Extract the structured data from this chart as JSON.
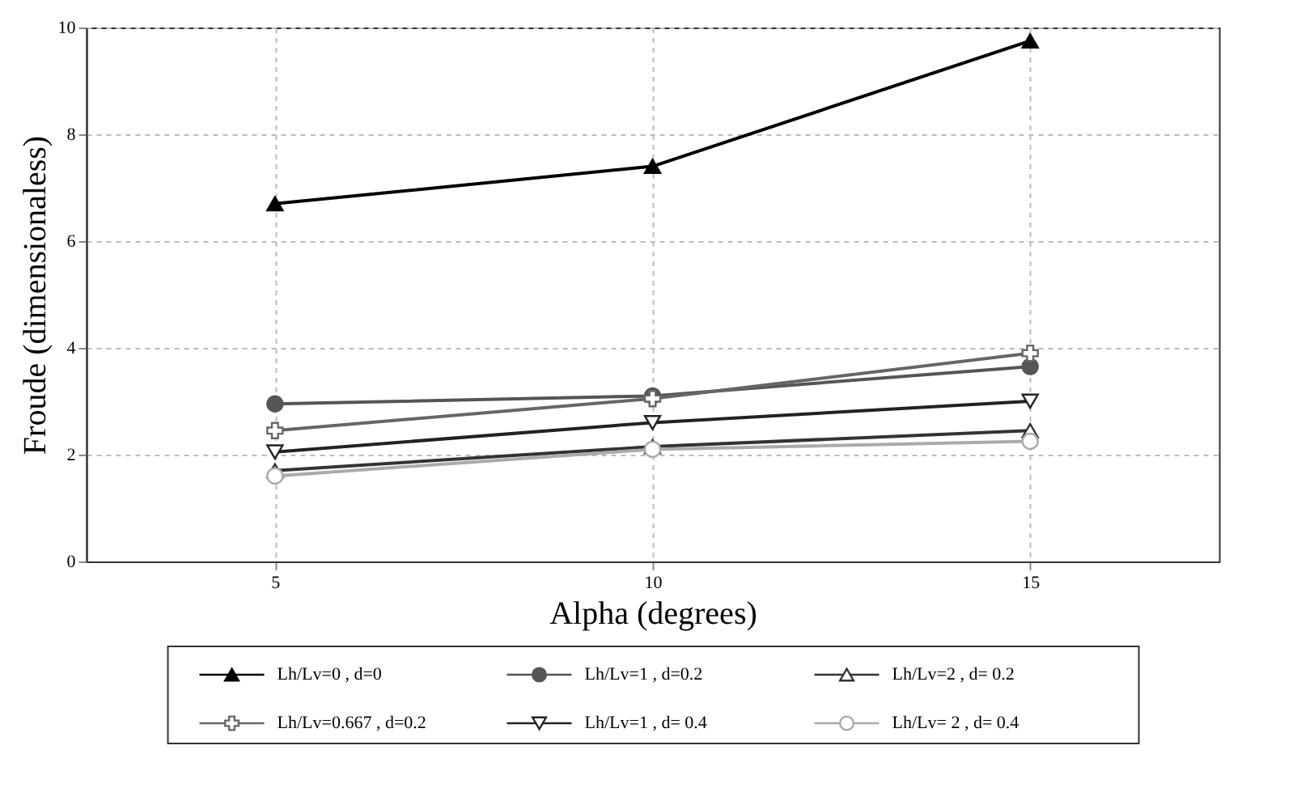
{
  "chart_data": {
    "type": "line",
    "xlabel": "Alpha (degrees)",
    "ylabel": "Froude (dimensionaless)",
    "x": [
      5,
      10,
      15
    ],
    "xlim": [
      2.5,
      17.5
    ],
    "xticks": [
      5,
      10,
      15
    ],
    "ylim": [
      0,
      10
    ],
    "yticks": [
      0,
      2,
      4,
      6,
      8,
      10
    ],
    "grid": true,
    "legend": "bottom",
    "line_style": "solid",
    "series": [
      {
        "name": "Lh/Lv=0 , d=0",
        "color": "#000000",
        "marker": "triangle",
        "values": [
          6.7,
          7.4,
          9.75
        ]
      },
      {
        "name": "Lh/Lv=1 , d=0.2",
        "color": "#555555",
        "marker": "circle",
        "values": [
          2.95,
          3.1,
          3.65
        ]
      },
      {
        "name": "Lh/Lv=2 , d= 0.2",
        "color": "#333333",
        "marker": "triangle",
        "values": [
          1.7,
          2.15,
          2.45
        ]
      },
      {
        "name": "Lh/Lv=0.667 , d=0.2",
        "color": "#666666",
        "marker": "cross",
        "values": [
          2.45,
          3.05,
          3.9
        ]
      },
      {
        "name": "Lh/Lv=1 , d= 0.4",
        "color": "#222222",
        "marker": "triangle",
        "values": [
          2.05,
          2.6,
          3.0
        ]
      },
      {
        "name": "Lh/Lv= 2 , d= 0.4",
        "color": "#aaaaaa",
        "marker": "circle",
        "values": [
          1.6,
          2.1,
          2.25
        ]
      }
    ]
  }
}
